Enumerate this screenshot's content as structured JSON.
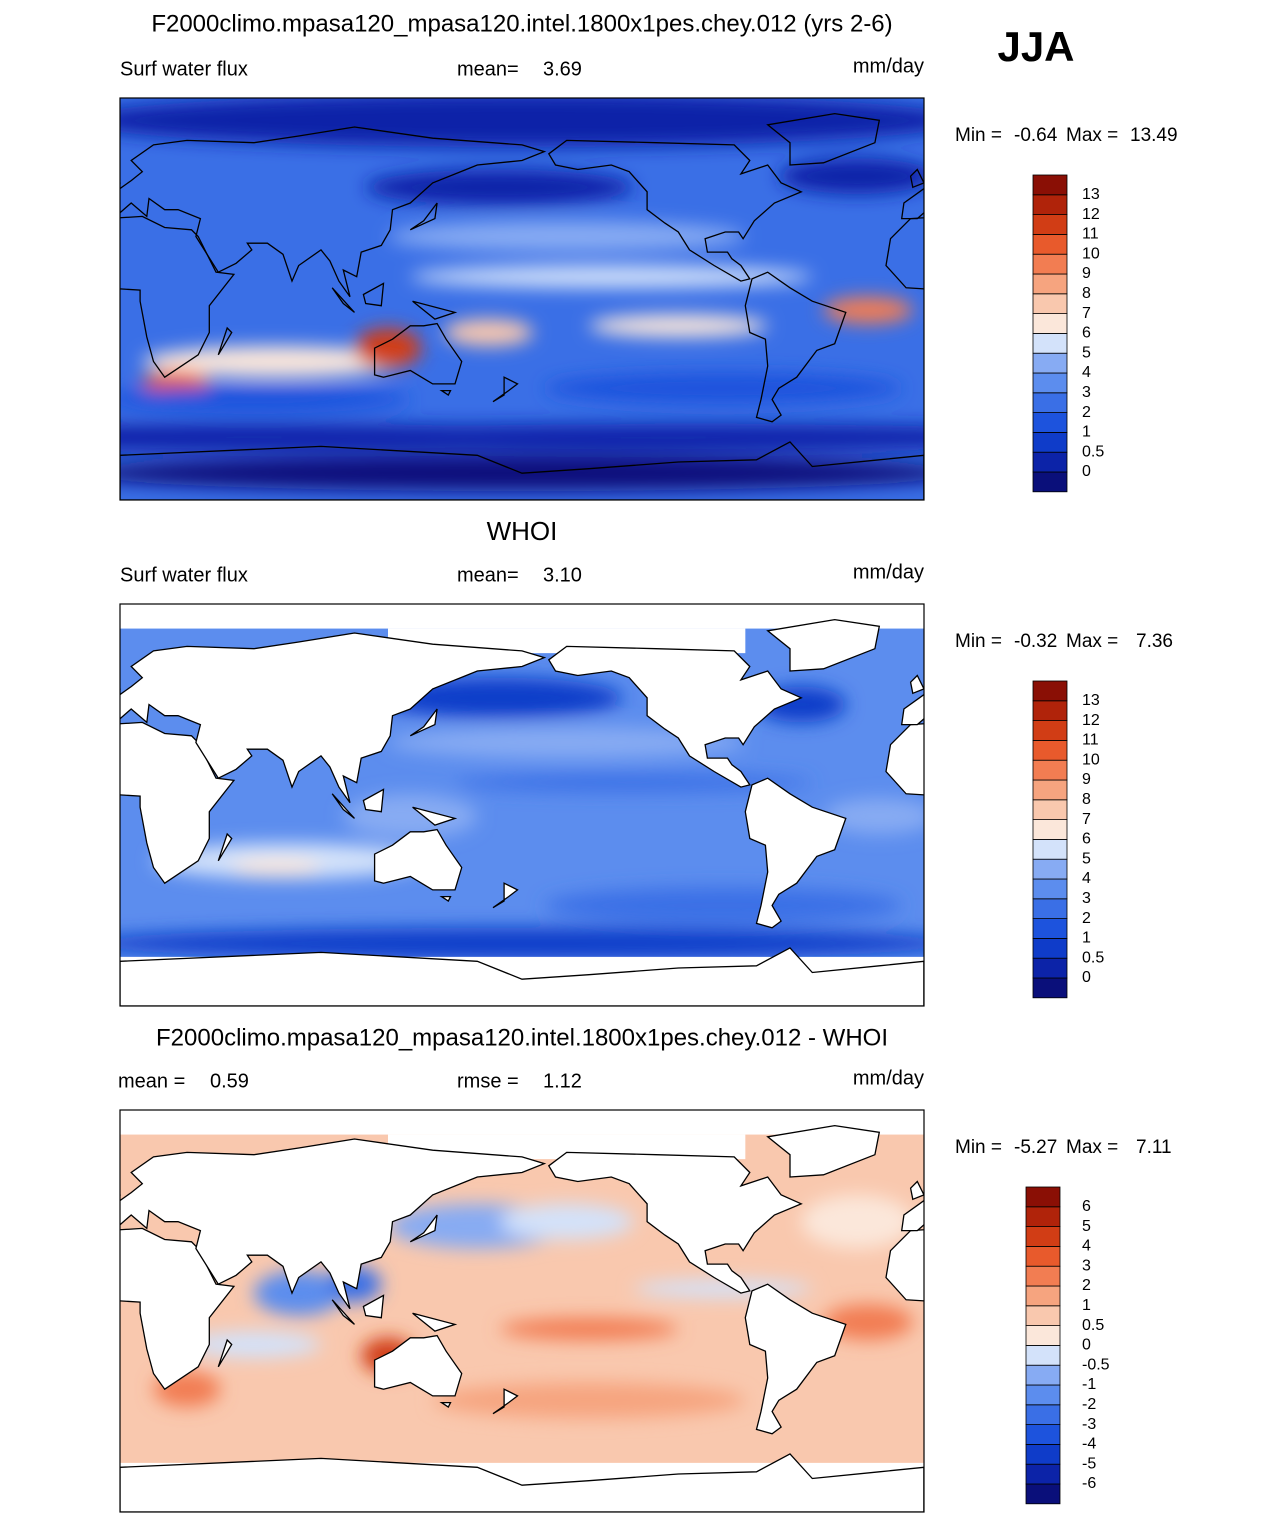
{
  "header": {
    "title": "F2000climo.mpasa120_mpasa120.intel.1800x1pes.chey.012 (yrs 2-6)",
    "season": "JJA"
  },
  "panels": [
    {
      "variable": "Surf water flux",
      "stats": [
        {
          "label": "mean=",
          "value": "3.69"
        }
      ],
      "units": "mm/day",
      "range": {
        "min_label": "Min =",
        "min": "-0.64",
        "max_label": "Max =",
        "max": "13.49"
      },
      "colorbar": {
        "levels": [
          0,
          0.5,
          1,
          2,
          3,
          4,
          5,
          6,
          7,
          8,
          9,
          10,
          11,
          12,
          13
        ],
        "colors": [
          "#0a0f7a",
          "#0c23a8",
          "#0f3cc9",
          "#1d53dd",
          "#3a6fe6",
          "#5c8dee",
          "#87abf3",
          "#d3e2fa",
          "#fbe7da",
          "#f9c8ae",
          "#f6a47f",
          "#f27d52",
          "#e85a2c",
          "#d13d15",
          "#b0230a",
          "#8a0f05"
        ]
      }
    },
    {
      "title": "WHOI",
      "variable": "Surf water flux",
      "stats": [
        {
          "label": "mean=",
          "value": "3.10"
        }
      ],
      "units": "mm/day",
      "range": {
        "min_label": "Min =",
        "min": "-0.32",
        "max_label": "Max =",
        "max": "7.36"
      },
      "colorbar": {
        "levels": [
          0,
          0.5,
          1,
          2,
          3,
          4,
          5,
          6,
          7,
          8,
          9,
          10,
          11,
          12,
          13
        ],
        "colors": [
          "#0a0f7a",
          "#0c23a8",
          "#0f3cc9",
          "#1d53dd",
          "#3a6fe6",
          "#5c8dee",
          "#87abf3",
          "#d3e2fa",
          "#fbe7da",
          "#f9c8ae",
          "#f6a47f",
          "#f27d52",
          "#e85a2c",
          "#d13d15",
          "#b0230a",
          "#8a0f05"
        ]
      }
    },
    {
      "title": "F2000climo.mpasa120_mpasa120.intel.1800x1pes.chey.012 - WHOI",
      "stats": [
        {
          "label": "mean =",
          "value": "0.59"
        },
        {
          "label": "rmse =",
          "value": "1.12"
        }
      ],
      "units": "mm/day",
      "range": {
        "min_label": "Min =",
        "min": "-5.27",
        "max_label": "Max =",
        "max": "7.11"
      },
      "colorbar": {
        "levels": [
          -6,
          -5,
          -4,
          -3,
          -2,
          -1,
          -0.5,
          0,
          0.5,
          1,
          2,
          3,
          4,
          5,
          6
        ],
        "colors": [
          "#0a0f7a",
          "#0c23a8",
          "#0f3cc9",
          "#1d53dd",
          "#3a6fe6",
          "#5c8dee",
          "#87abf3",
          "#d3e2fa",
          "#fbe7da",
          "#f9c8ae",
          "#f6a47f",
          "#f27d52",
          "#e85a2c",
          "#d13d15",
          "#b0230a",
          "#8a0f05"
        ]
      }
    }
  ]
}
